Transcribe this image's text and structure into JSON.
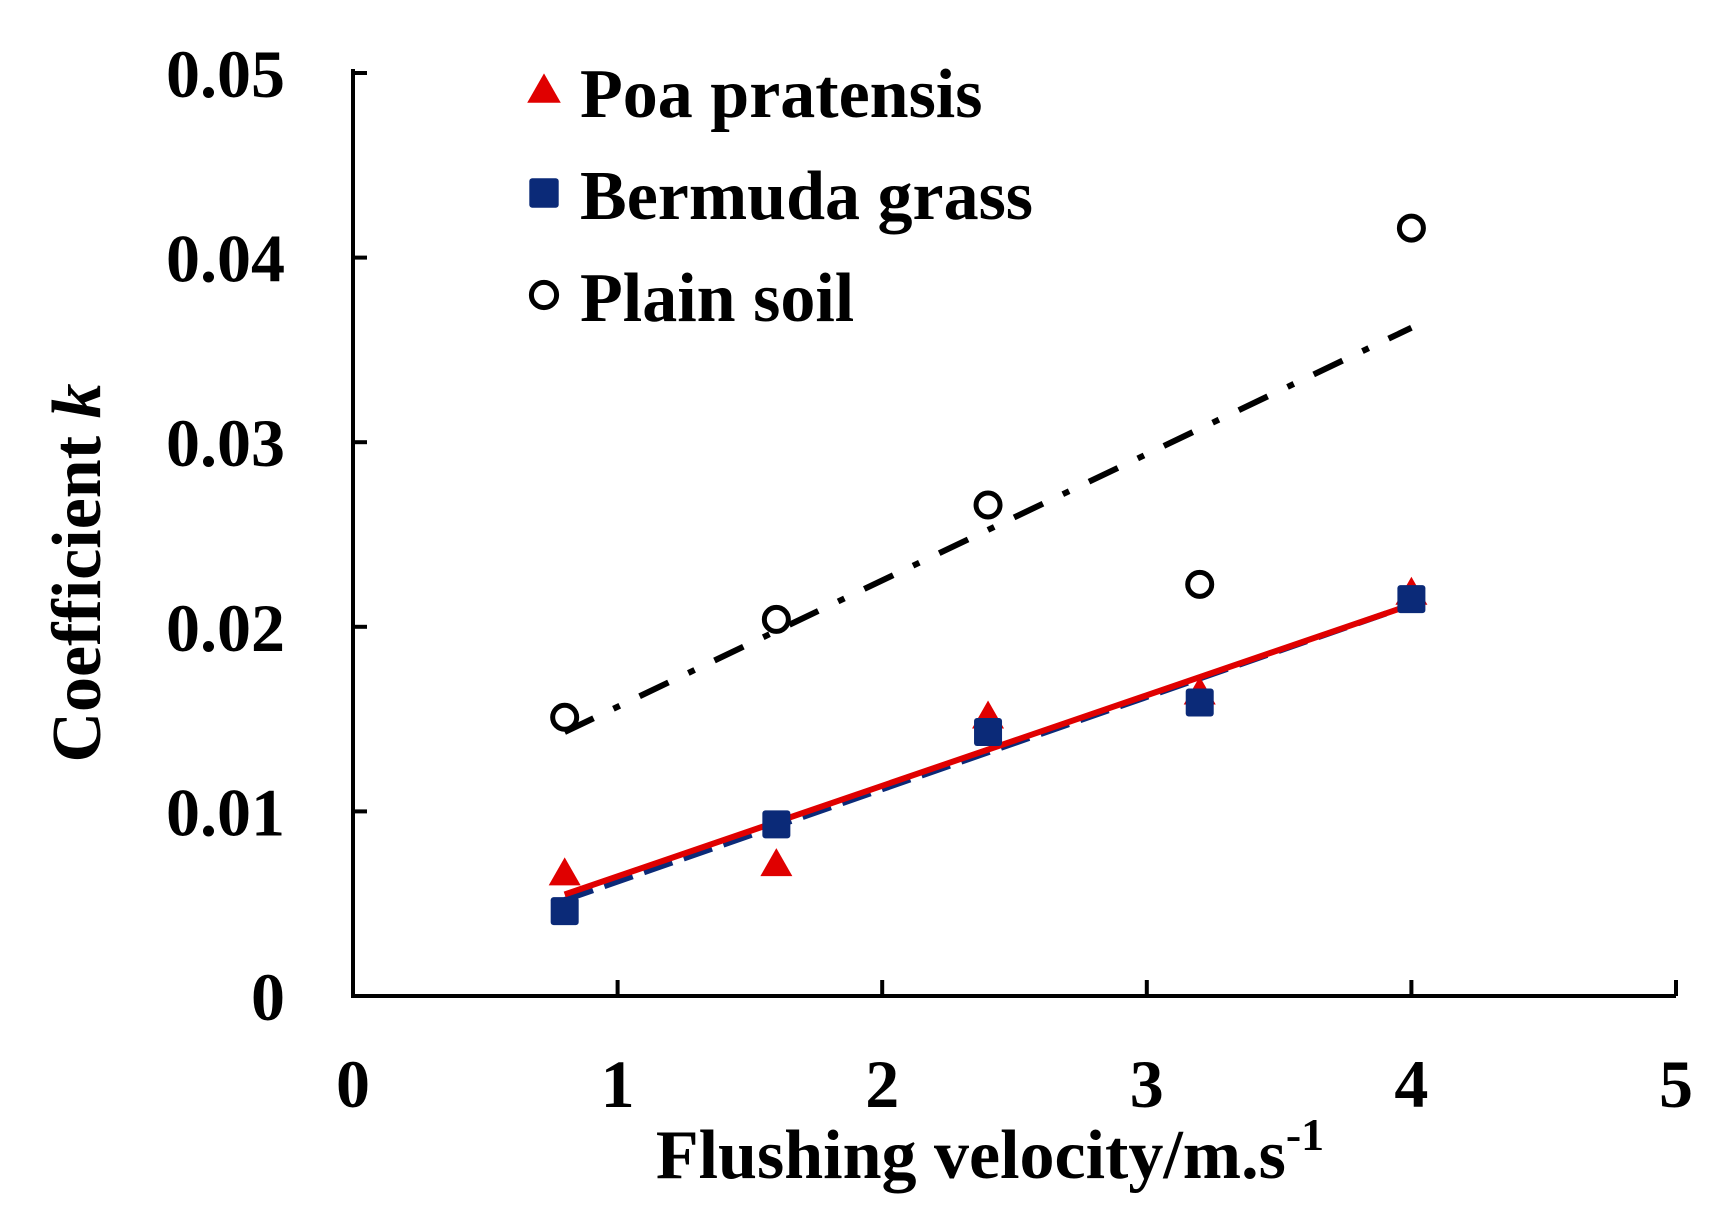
{
  "chart_data": {
    "type": "scatter",
    "title": "",
    "xlabel": "Flushing velocity/m.s",
    "xlabel_superscript": "-1",
    "ylabel": "Coefficient",
    "ylabel_italic": "k",
    "xlim": [
      0,
      5
    ],
    "ylim": [
      0,
      0.05
    ],
    "x_ticks": [
      0,
      1,
      2,
      3,
      4,
      5
    ],
    "x_tick_labels": [
      "0",
      "1",
      "2",
      "3",
      "4",
      "5"
    ],
    "y_ticks": [
      0,
      0.01,
      0.02,
      0.03,
      0.04,
      0.05
    ],
    "y_tick_labels": [
      "0",
      "0.01",
      "0.02",
      "0.03",
      "0.04",
      "0.05"
    ],
    "grid": false,
    "legend_position": "top-left",
    "series": [
      {
        "name": "Poa pratensis",
        "marker": "triangle",
        "color": "#e00000",
        "x": [
          0.8,
          1.6,
          2.4,
          3.2,
          4.0
        ],
        "y": [
          0.0066,
          0.0071,
          0.0151,
          0.0164,
          0.0218
        ],
        "trendline": {
          "style": "solid",
          "x": [
            0.8,
            4.0
          ],
          "y": [
            0.0055,
            0.0212
          ]
        }
      },
      {
        "name": "Bermuda grass",
        "marker": "square",
        "color": "#0b2a78",
        "x": [
          0.8,
          1.6,
          2.4,
          3.2,
          4.0
        ],
        "y": [
          0.0046,
          0.0093,
          0.0143,
          0.0159,
          0.0215
        ],
        "trendline": {
          "style": "dashed",
          "x": [
            0.8,
            4.0
          ],
          "y": [
            0.0052,
            0.0212
          ]
        }
      },
      {
        "name": "Plain soil",
        "marker": "open-circle",
        "color": "#000000",
        "x": [
          0.8,
          1.6,
          2.4,
          3.2,
          4.0
        ],
        "y": [
          0.0151,
          0.0204,
          0.0266,
          0.0223,
          0.0416
        ],
        "trendline": {
          "style": "dash-dot",
          "x": [
            0.8,
            4.0
          ],
          "y": [
            0.0143,
            0.0362
          ]
        }
      }
    ]
  }
}
